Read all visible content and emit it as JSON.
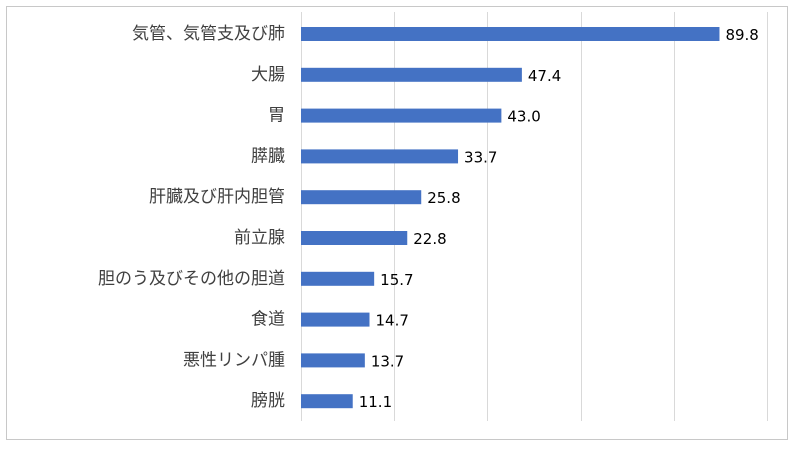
{
  "chart_data": {
    "type": "bar",
    "orientation": "horizontal",
    "categories": [
      "気管、気管支及び肺",
      "大腸",
      "胃",
      "膵臓",
      "肝臓及び肝内胆管",
      "前立腺",
      "胆のう及びその他の胆道",
      "食道",
      "悪性リンパ腫",
      "膀胱"
    ],
    "values": [
      89.8,
      47.4,
      43.0,
      33.7,
      25.8,
      22.8,
      15.7,
      14.7,
      13.7,
      11.1
    ],
    "value_labels": [
      "89.8",
      "47.4",
      "43.0",
      "33.7",
      "25.8",
      "22.8",
      "15.7",
      "14.7",
      "13.7",
      "11.1"
    ],
    "xlim": [
      0,
      100
    ],
    "x_grid_step": 20,
    "grid": true,
    "x_tick_labels_visible": false,
    "title": "",
    "xlabel": "",
    "ylabel": "",
    "legend": "none",
    "colors": {
      "bar": "#4472C4",
      "grid": "#d9d9d9",
      "frame": "#c8c8c8",
      "category_text": "#404040",
      "value_text": "#000000"
    }
  }
}
